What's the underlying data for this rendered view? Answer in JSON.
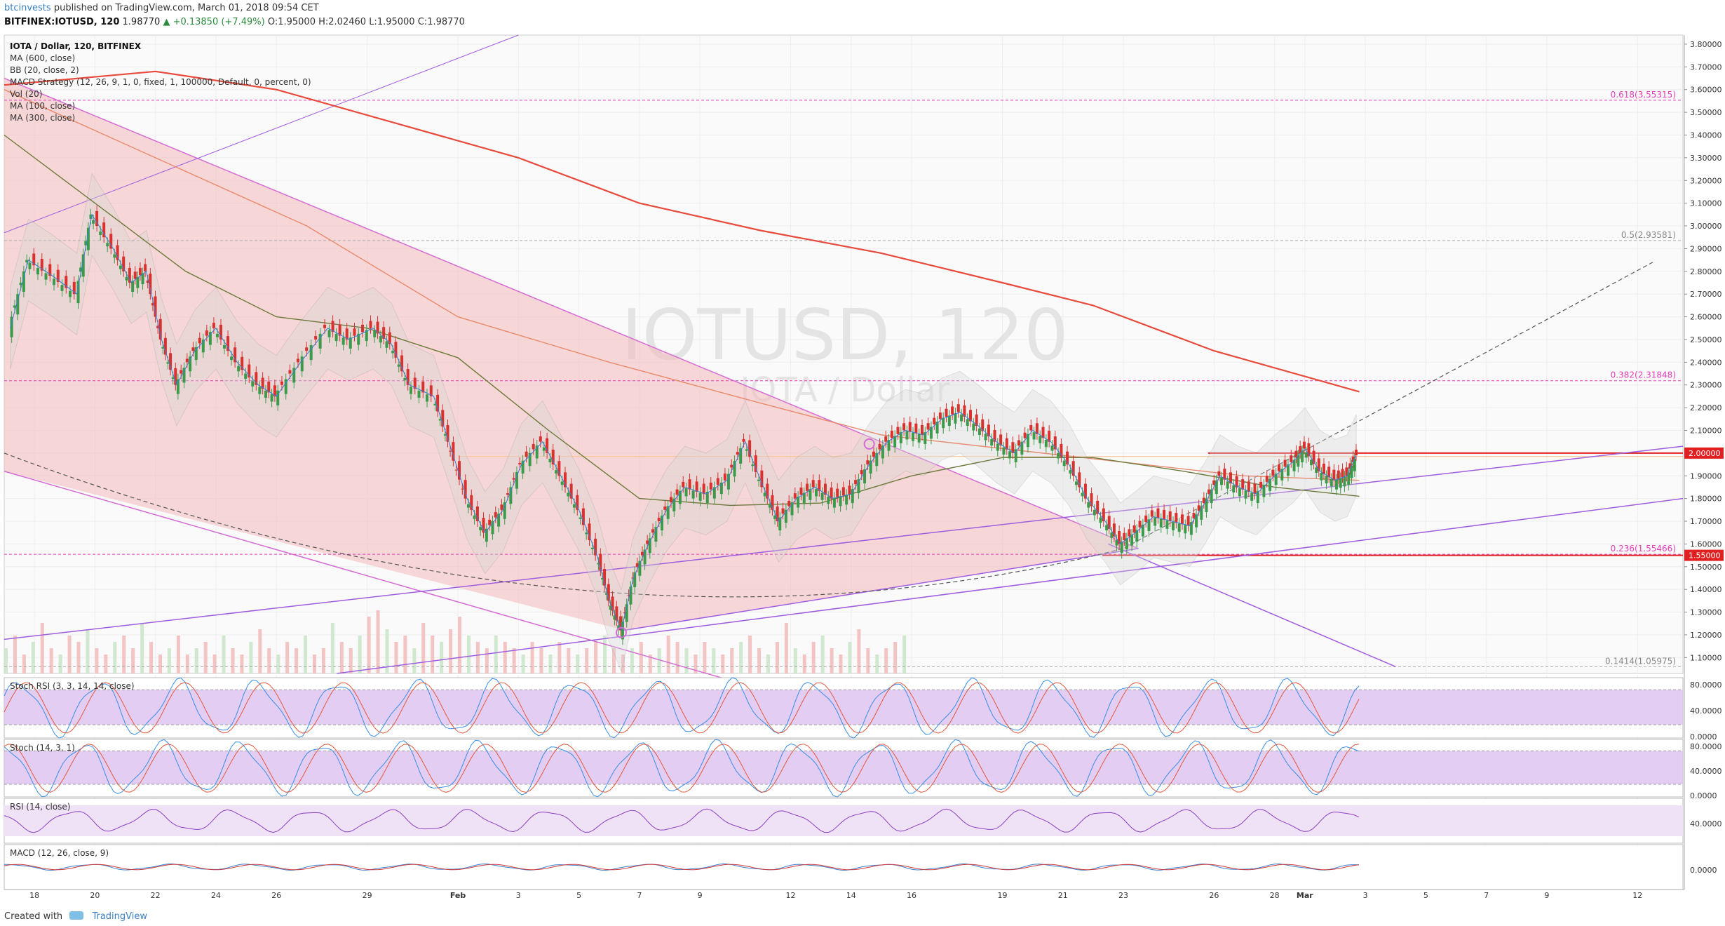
{
  "header": {
    "author": "btcinvests",
    "published": "published on TradingView.com, March 01, 2018 09:54 CET",
    "symbol": "BITFINEX:IOTUSD, 120",
    "last": "1.98770",
    "change": "▲ +0.13850 (+7.49%)",
    "ohlc_labels": [
      "O:",
      "H:",
      "L:",
      "C:"
    ],
    "ohlc_values": [
      "1.95000",
      "2.02460",
      "1.95000",
      "1.98770"
    ]
  },
  "footer": {
    "created_with": "Created with",
    "brand": "TradingView"
  },
  "colors": {
    "up": "#3c9b4a",
    "down": "#d9312f",
    "ma600": "#e84a3c",
    "ma300": "#e88a6e",
    "ma100": "#6b7a3a",
    "bb": "#9a9a9a",
    "channel": "#f2b8b8",
    "fib": "#e23dbd",
    "trend": "#a05de0",
    "osc_fill": "#dcc1f0",
    "stoch_k": "#3a8ee6",
    "stoch_d": "#e2583d"
  },
  "chart_data": {
    "type": "line",
    "title": "IOTA / Dollar, 120, BITFINEX",
    "watermark": "IOTUSD, 120",
    "watermark_sub": "IOTA / Dollar",
    "indicators": [
      "MA (600, close)",
      "BB (20, close, 2)",
      "MACD Strategy (12, 26, 9, 1, 0, fixed, 1, 100000, Default, 0, percent, 0)",
      "Vol (20)",
      "MA (100, close)",
      "MA (300, close)"
    ],
    "x_ticks": [
      "18",
      "20",
      "22",
      "24",
      "26",
      "29",
      "Feb",
      "3",
      "5",
      "7",
      "9",
      "12",
      "14",
      "16",
      "19",
      "21",
      "23",
      "26",
      "28",
      "Mar",
      "3",
      "5",
      "7",
      "9",
      "12"
    ],
    "x_tick_days": [
      -14,
      -12,
      -10,
      -8,
      -6,
      -3,
      0,
      2,
      4,
      6,
      8,
      11,
      13,
      15,
      18,
      20,
      22,
      25,
      27,
      28,
      30,
      32,
      34,
      36,
      39
    ],
    "y_ticks": [
      "3.80000",
      "3.70000",
      "3.60000",
      "3.50000",
      "3.40000",
      "3.30000",
      "3.20000",
      "3.10000",
      "3.00000",
      "2.90000",
      "2.80000",
      "2.70000",
      "2.60000",
      "2.50000",
      "2.40000",
      "2.30000",
      "2.20000",
      "2.10000",
      "2.00000",
      "1.90000",
      "1.80000",
      "1.70000",
      "1.60000",
      "1.50000",
      "1.40000",
      "1.30000",
      "1.20000",
      "1.10000"
    ],
    "ylim": [
      1.03,
      3.84
    ],
    "fib_levels": [
      {
        "label": "0.618(3.55315)",
        "value": 3.55315
      },
      {
        "label": "0.5(2.93581)",
        "value": 2.93581
      },
      {
        "label": "0.382(2.31848)",
        "value": 2.31848
      },
      {
        "label": "0.236(1.55466)",
        "value": 1.55466
      },
      {
        "label": "0.1414(1.05975)",
        "value": 1.05975
      }
    ],
    "price_labels": [
      {
        "label": "2.00000",
        "value": 2.0
      },
      {
        "label": "1.55000",
        "value": 1.55
      }
    ],
    "close_series": [
      {
        "day": -14.8,
        "value": 2.55
      },
      {
        "day": -14.2,
        "value": 2.85
      },
      {
        "day": -13.4,
        "value": 2.78
      },
      {
        "day": -12.6,
        "value": 2.7
      },
      {
        "day": -12.1,
        "value": 3.05
      },
      {
        "day": -11.4,
        "value": 2.9
      },
      {
        "day": -10.8,
        "value": 2.75
      },
      {
        "day": -10.3,
        "value": 2.8
      },
      {
        "day": -9.8,
        "value": 2.5
      },
      {
        "day": -9.3,
        "value": 2.3
      },
      {
        "day": -8.7,
        "value": 2.45
      },
      {
        "day": -8.0,
        "value": 2.55
      },
      {
        "day": -7.3,
        "value": 2.4
      },
      {
        "day": -6.6,
        "value": 2.3
      },
      {
        "day": -6.0,
        "value": 2.25
      },
      {
        "day": -5.2,
        "value": 2.4
      },
      {
        "day": -4.3,
        "value": 2.55
      },
      {
        "day": -3.6,
        "value": 2.5
      },
      {
        "day": -2.8,
        "value": 2.55
      },
      {
        "day": -2.2,
        "value": 2.48
      },
      {
        "day": -1.6,
        "value": 2.3
      },
      {
        "day": -0.8,
        "value": 2.25
      },
      {
        "day": -0.3,
        "value": 2.05
      },
      {
        "day": 0.3,
        "value": 1.8
      },
      {
        "day": 0.9,
        "value": 1.65
      },
      {
        "day": 1.5,
        "value": 1.75
      },
      {
        "day": 2.1,
        "value": 1.95
      },
      {
        "day": 2.8,
        "value": 2.05
      },
      {
        "day": 3.4,
        "value": 1.9
      },
      {
        "day": 4.0,
        "value": 1.75
      },
      {
        "day": 4.6,
        "value": 1.55
      },
      {
        "day": 5.0,
        "value": 1.35
      },
      {
        "day": 5.4,
        "value": 1.22
      },
      {
        "day": 5.8,
        "value": 1.45
      },
      {
        "day": 6.3,
        "value": 1.6
      },
      {
        "day": 6.9,
        "value": 1.75
      },
      {
        "day": 7.5,
        "value": 1.85
      },
      {
        "day": 8.2,
        "value": 1.82
      },
      {
        "day": 8.9,
        "value": 1.88
      },
      {
        "day": 9.5,
        "value": 2.05
      },
      {
        "day": 10.1,
        "value": 1.85
      },
      {
        "day": 10.6,
        "value": 1.7
      },
      {
        "day": 11.2,
        "value": 1.8
      },
      {
        "day": 11.8,
        "value": 1.85
      },
      {
        "day": 12.4,
        "value": 1.8
      },
      {
        "day": 13.0,
        "value": 1.82
      },
      {
        "day": 13.6,
        "value": 1.95
      },
      {
        "day": 14.2,
        "value": 2.05
      },
      {
        "day": 14.8,
        "value": 2.1
      },
      {
        "day": 15.4,
        "value": 2.08
      },
      {
        "day": 16.0,
        "value": 2.15
      },
      {
        "day": 16.6,
        "value": 2.18
      },
      {
        "day": 17.2,
        "value": 2.12
      },
      {
        "day": 17.8,
        "value": 2.05
      },
      {
        "day": 18.4,
        "value": 2.0
      },
      {
        "day": 19.0,
        "value": 2.1
      },
      {
        "day": 19.6,
        "value": 2.05
      },
      {
        "day": 20.2,
        "value": 1.95
      },
      {
        "day": 20.8,
        "value": 1.8
      },
      {
        "day": 21.4,
        "value": 1.7
      },
      {
        "day": 21.9,
        "value": 1.6
      },
      {
        "day": 22.4,
        "value": 1.65
      },
      {
        "day": 23.0,
        "value": 1.72
      },
      {
        "day": 23.6,
        "value": 1.7
      },
      {
        "day": 24.2,
        "value": 1.68
      },
      {
        "day": 24.7,
        "value": 1.78
      },
      {
        "day": 25.2,
        "value": 1.9
      },
      {
        "day": 25.8,
        "value": 1.85
      },
      {
        "day": 26.4,
        "value": 1.82
      },
      {
        "day": 27.0,
        "value": 1.9
      },
      {
        "day": 27.6,
        "value": 1.96
      },
      {
        "day": 28.0,
        "value": 2.02
      },
      {
        "day": 28.5,
        "value": 1.92
      },
      {
        "day": 29.0,
        "value": 1.88
      },
      {
        "day": 29.4,
        "value": 1.9
      },
      {
        "day": 29.7,
        "value": 1.99
      }
    ],
    "ma600": [
      {
        "day": -15,
        "value": 3.62
      },
      {
        "day": -10,
        "value": 3.68
      },
      {
        "day": -6,
        "value": 3.6
      },
      {
        "day": -2,
        "value": 3.45
      },
      {
        "day": 2,
        "value": 3.3
      },
      {
        "day": 6,
        "value": 3.1
      },
      {
        "day": 10,
        "value": 2.98
      },
      {
        "day": 14,
        "value": 2.88
      },
      {
        "day": 18,
        "value": 2.75
      },
      {
        "day": 21,
        "value": 2.65
      },
      {
        "day": 25,
        "value": 2.45
      },
      {
        "day": 29.8,
        "value": 2.27
      }
    ],
    "ma300": [
      {
        "day": -15,
        "value": 3.6
      },
      {
        "day": -10,
        "value": 3.3
      },
      {
        "day": -5,
        "value": 3.0
      },
      {
        "day": 0,
        "value": 2.6
      },
      {
        "day": 5,
        "value": 2.4
      },
      {
        "day": 10,
        "value": 2.22
      },
      {
        "day": 14,
        "value": 2.08
      },
      {
        "day": 18,
        "value": 2.02
      },
      {
        "day": 22,
        "value": 1.96
      },
      {
        "day": 26,
        "value": 1.9
      },
      {
        "day": 29.8,
        "value": 1.88
      }
    ],
    "ma100": [
      {
        "day": -15,
        "value": 3.4
      },
      {
        "day": -12,
        "value": 3.1
      },
      {
        "day": -9,
        "value": 2.8
      },
      {
        "day": -6,
        "value": 2.6
      },
      {
        "day": -3,
        "value": 2.55
      },
      {
        "day": 0,
        "value": 2.42
      },
      {
        "day": 3,
        "value": 2.1
      },
      {
        "day": 6,
        "value": 1.8
      },
      {
        "day": 9,
        "value": 1.77
      },
      {
        "day": 12,
        "value": 1.78
      },
      {
        "day": 15,
        "value": 1.9
      },
      {
        "day": 18,
        "value": 1.98
      },
      {
        "day": 21,
        "value": 1.98
      },
      {
        "day": 24,
        "value": 1.92
      },
      {
        "day": 27,
        "value": 1.85
      },
      {
        "day": 29.8,
        "value": 1.81
      }
    ],
    "volume": [
      0.4,
      0.6,
      0.3,
      0.5,
      0.8,
      0.4,
      0.3,
      0.6,
      0.5,
      0.7,
      0.4,
      0.3,
      0.5,
      0.6,
      0.4,
      0.8,
      0.5,
      0.3,
      0.4,
      0.6,
      0.3,
      0.4,
      0.5,
      0.3,
      0.6,
      0.4,
      0.3,
      0.5,
      0.7,
      0.4,
      0.3,
      0.5,
      0.4,
      0.6,
      0.3,
      0.4,
      0.8,
      0.5,
      0.4,
      0.6,
      0.9,
      1.0,
      0.7,
      0.5,
      0.6,
      0.4,
      0.8,
      0.6,
      0.5,
      0.7,
      0.9,
      0.6,
      0.5,
      0.4,
      0.6,
      0.5,
      0.4,
      0.3,
      0.5,
      0.4,
      0.3,
      0.5,
      0.4,
      0.3,
      0.4,
      0.5,
      0.6,
      0.4,
      0.3,
      0.4,
      0.5,
      0.3,
      0.4,
      0.6,
      0.5,
      0.4,
      0.3,
      0.5,
      0.4,
      0.3,
      0.4,
      0.5,
      0.6,
      0.4,
      0.3,
      0.5,
      0.8,
      0.4,
      0.3,
      0.5,
      0.6,
      0.4,
      0.3,
      0.5,
      0.7,
      0.4,
      0.3,
      0.4,
      0.5,
      0.6
    ],
    "trendlines": [
      {
        "from": {
          "day": -15,
          "value": 1.93
        },
        "to": {
          "day": 30.5,
          "value": 1.93
        }
      },
      {
        "from": {
          "day": -15,
          "value": 3.65
        },
        "to": {
          "day": 22.5,
          "value": 1.58
        }
      },
      {
        "from": {
          "day": -15,
          "value": 1.92
        },
        "to": {
          "day": 9.0,
          "value": 1.0
        }
      },
      {
        "from": {
          "day": 5.5,
          "value": 1.22
        },
        "to": {
          "day": 22.5,
          "value": 1.58
        }
      },
      {
        "from": {
          "day": 21.5,
          "value": 1.6
        },
        "to": {
          "day": 31.0,
          "value": 1.06
        }
      }
    ],
    "stoch_rsi": {
      "title": "Stoch RSI (3, 3, 14, 14, close)",
      "ticks": [
        "80.0000",
        "40.0000",
        "0.0000"
      ]
    },
    "stoch": {
      "title": "Stoch (14, 3, 1)",
      "ticks": [
        "80.0000",
        "40.0000",
        "0.0000"
      ]
    },
    "rsi": {
      "title": "RSI (14, close)",
      "ticks": [
        "40.0000"
      ]
    },
    "macd": {
      "title": "MACD (12, 26, close, 9)",
      "ticks": [
        "0.0000"
      ]
    }
  }
}
